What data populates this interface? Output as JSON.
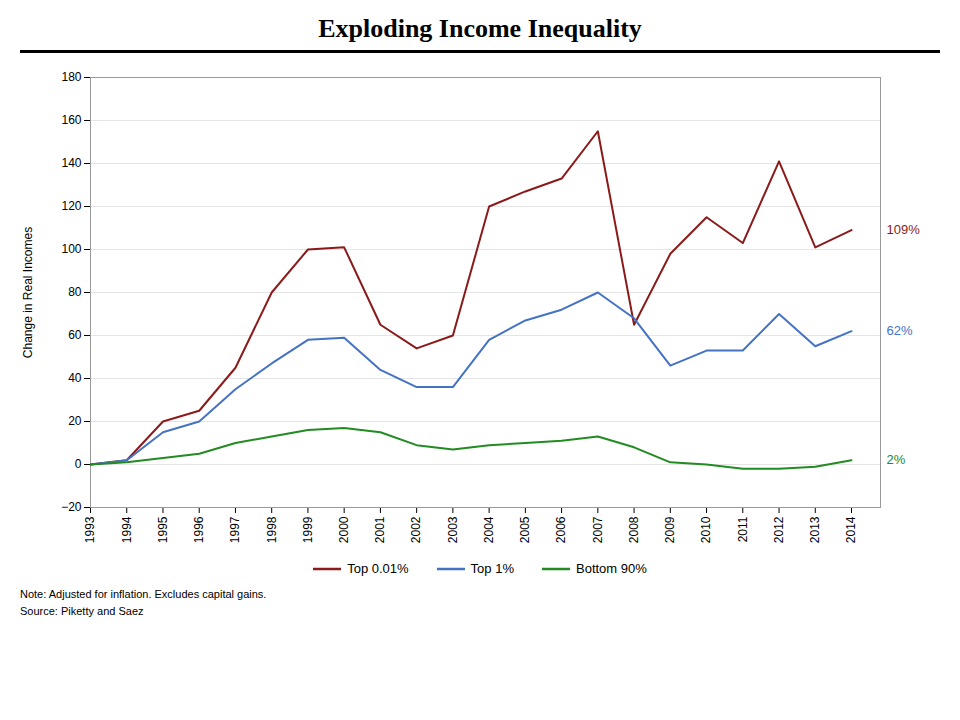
{
  "chart_data": {
    "type": "line",
    "title": "Exploding Income Inequality",
    "y_label": "Change in Real Incomes",
    "x": [
      1993,
      1994,
      1995,
      1996,
      1997,
      1998,
      1999,
      2000,
      2001,
      2002,
      2003,
      2004,
      2005,
      2006,
      2007,
      2008,
      2009,
      2010,
      2011,
      2012,
      2013,
      2014
    ],
    "series": [
      {
        "name": "Top 0.01%",
        "color": "#8B1A1A",
        "values": [
          0,
          2,
          20,
          25,
          45,
          80,
          100,
          101,
          65,
          54,
          60,
          120,
          127,
          133,
          155,
          65,
          98,
          115,
          103,
          141,
          101,
          109
        ]
      },
      {
        "name": "Top 1%",
        "color": "#4472C4",
        "values": [
          0,
          2,
          15,
          20,
          35,
          47,
          58,
          59,
          44,
          36,
          36,
          58,
          67,
          72,
          80,
          68,
          46,
          53,
          53,
          70,
          55,
          62
        ]
      },
      {
        "name": "Bottom 90%",
        "color": "#228B22",
        "values": [
          0,
          1,
          3,
          5,
          10,
          13,
          16,
          17,
          15,
          9,
          7,
          9,
          10,
          11,
          13,
          8,
          1,
          0,
          -2,
          -2,
          -1,
          2
        ]
      }
    ],
    "xlim": [
      1993,
      2014.8
    ],
    "xticks": [
      1993,
      1994,
      1995,
      1996,
      1997,
      1998,
      1999,
      2000,
      2001,
      2002,
      2003,
      2004,
      2005,
      2006,
      2007,
      2008,
      2009,
      2010,
      2011,
      2012,
      2013,
      2014
    ],
    "ylim": [
      -20,
      180
    ],
    "yticks": [
      -20,
      0,
      20,
      40,
      60,
      80,
      100,
      120,
      140,
      160,
      180
    ],
    "grid": true,
    "legend": "bottom",
    "annotations": [
      {
        "text": "109%",
        "y": 109,
        "color": "#8B1A1A"
      },
      {
        "text": "62%",
        "y": 62,
        "color": "#4472C4"
      },
      {
        "text": "2%",
        "y": 2,
        "color": "#228B22"
      }
    ],
    "notes": [
      "Note: Adjusted for inflation.  Excludes capital gains.",
      "Source: Piketty and Saez"
    ]
  }
}
